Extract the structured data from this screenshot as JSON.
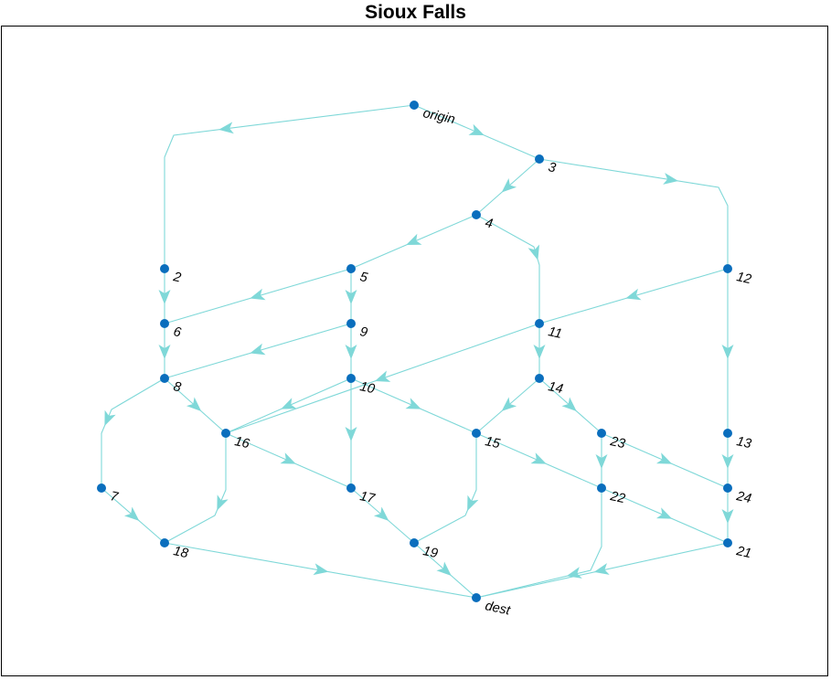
{
  "title": "Sioux Falls",
  "colors": {
    "edge": "#7FD8D8",
    "node": "#0A6EBD",
    "frame": "#000000"
  },
  "nodes": [
    {
      "id": "origin",
      "label": "origin"
    },
    {
      "id": "2",
      "label": "2"
    },
    {
      "id": "3",
      "label": "3"
    },
    {
      "id": "4",
      "label": "4"
    },
    {
      "id": "5",
      "label": "5"
    },
    {
      "id": "6",
      "label": "6"
    },
    {
      "id": "7",
      "label": "7"
    },
    {
      "id": "8",
      "label": "8"
    },
    {
      "id": "9",
      "label": "9"
    },
    {
      "id": "10",
      "label": "10"
    },
    {
      "id": "11",
      "label": "11"
    },
    {
      "id": "12",
      "label": "12"
    },
    {
      "id": "13",
      "label": "13"
    },
    {
      "id": "14",
      "label": "14"
    },
    {
      "id": "15",
      "label": "15"
    },
    {
      "id": "16",
      "label": "16"
    },
    {
      "id": "17",
      "label": "17"
    },
    {
      "id": "18",
      "label": "18"
    },
    {
      "id": "19",
      "label": "19"
    },
    {
      "id": "21",
      "label": "21"
    },
    {
      "id": "22",
      "label": "22"
    },
    {
      "id": "23",
      "label": "23"
    },
    {
      "id": "24",
      "label": "24"
    },
    {
      "id": "dest",
      "label": "dest"
    }
  ],
  "edges": [
    {
      "from": "origin",
      "to": "2"
    },
    {
      "from": "origin",
      "to": "3"
    },
    {
      "from": "3",
      "to": "4"
    },
    {
      "from": "3",
      "to": "12"
    },
    {
      "from": "4",
      "to": "5"
    },
    {
      "from": "4",
      "to": "11"
    },
    {
      "from": "2",
      "to": "6"
    },
    {
      "from": "5",
      "to": "6"
    },
    {
      "from": "5",
      "to": "9"
    },
    {
      "from": "12",
      "to": "11"
    },
    {
      "from": "12",
      "to": "13"
    },
    {
      "from": "6",
      "to": "8"
    },
    {
      "from": "9",
      "to": "8"
    },
    {
      "from": "9",
      "to": "10"
    },
    {
      "from": "11",
      "to": "16"
    },
    {
      "from": "11",
      "to": "14"
    },
    {
      "from": "8",
      "to": "7"
    },
    {
      "from": "8",
      "to": "16"
    },
    {
      "from": "10",
      "to": "16"
    },
    {
      "from": "10",
      "to": "17"
    },
    {
      "from": "10",
      "to": "15"
    },
    {
      "from": "14",
      "to": "15"
    },
    {
      "from": "14",
      "to": "23"
    },
    {
      "from": "13",
      "to": "24"
    },
    {
      "from": "16",
      "to": "18"
    },
    {
      "from": "16",
      "to": "17"
    },
    {
      "from": "15",
      "to": "19"
    },
    {
      "from": "15",
      "to": "22"
    },
    {
      "from": "23",
      "to": "22"
    },
    {
      "from": "23",
      "to": "24"
    },
    {
      "from": "7",
      "to": "18"
    },
    {
      "from": "17",
      "to": "19"
    },
    {
      "from": "24",
      "to": "21"
    },
    {
      "from": "22",
      "to": "21"
    },
    {
      "from": "22",
      "to": "dest"
    },
    {
      "from": "18",
      "to": "dest"
    },
    {
      "from": "19",
      "to": "dest"
    },
    {
      "from": "21",
      "to": "dest"
    }
  ]
}
